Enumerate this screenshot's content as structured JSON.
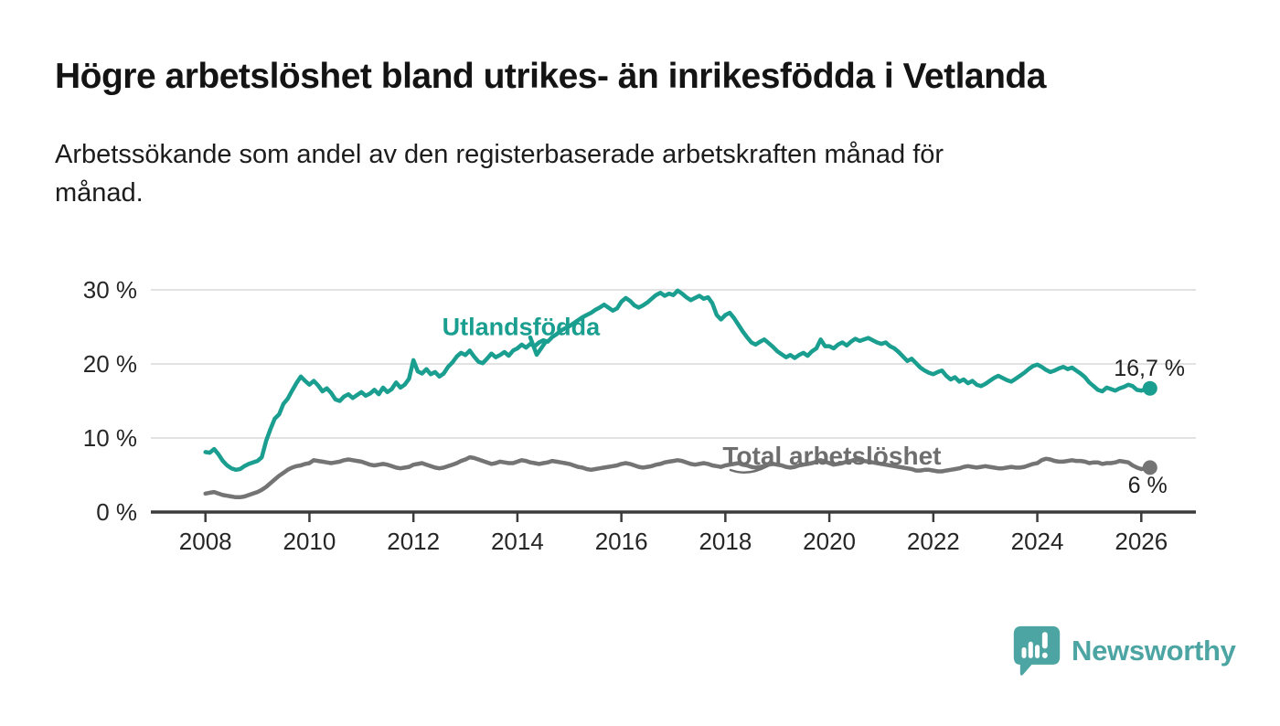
{
  "header": {
    "title": "Högre arbetslöshet bland utrikes- än inrikesfödda i Vetlanda",
    "subtitle_line1": "Arbetssökande som andel av den registerbaserade arbetskraften månad för",
    "subtitle_line2": "månad."
  },
  "footer": {
    "brand_name": "Newsworthy",
    "brand_color": "#4CA5A2",
    "logo_icon": "speech-bubble-bar-chart-icon"
  },
  "colors": {
    "series_foreign_born": "#1A9E8F",
    "series_total": "#747474",
    "axis": "#3B3B3B",
    "gridline": "#D9D9D9",
    "axis_text": "#262626",
    "value_label_text": "#1F1F1F",
    "total_label": "#6E6E6E"
  },
  "chart_data": {
    "type": "line",
    "title": "Högre arbetslöshet bland utrikes- än inrikesfödda i Vetlanda",
    "xlabel": "",
    "ylabel": "",
    "grid": true,
    "x_axis": {
      "range": [
        2006.95,
        2027.05
      ],
      "ticks": [
        2008,
        2010,
        2012,
        2014,
        2016,
        2018,
        2020,
        2022,
        2024,
        2026
      ],
      "tick_labels": [
        "2008",
        "2010",
        "2012",
        "2014",
        "2016",
        "2018",
        "2020",
        "2022",
        "2024",
        "2026"
      ]
    },
    "y_axis": {
      "range": [
        0,
        30
      ],
      "ticks": [
        0,
        10,
        20,
        30
      ],
      "tick_labels": [
        "0 %",
        "10 %",
        "20 %",
        "30 %"
      ]
    },
    "series": [
      {
        "name": "Utlandsfödda",
        "color": "#1A9E8F",
        "unit": "percent",
        "start_year": 2008.0,
        "step_years": 0.0833,
        "end_value": 16.7,
        "values": [
          8.1,
          8.0,
          8.5,
          7.8,
          6.9,
          6.3,
          5.9,
          5.7,
          5.8,
          6.2,
          6.5,
          6.7,
          6.9,
          7.4,
          9.6,
          11.2,
          12.6,
          13.2,
          14.6,
          15.3,
          16.4,
          17.4,
          18.3,
          17.7,
          17.2,
          17.7,
          17.1,
          16.3,
          16.7,
          16.1,
          15.2,
          15.0,
          15.6,
          15.9,
          15.4,
          15.8,
          16.2,
          15.7,
          16.0,
          16.5,
          15.9,
          16.8,
          16.2,
          16.6,
          17.5,
          16.8,
          17.2,
          18.0,
          20.5,
          19.0,
          18.7,
          19.3,
          18.6,
          18.9,
          18.3,
          18.7,
          19.6,
          20.2,
          21.0,
          21.5,
          21.2,
          21.8,
          21.0,
          20.3,
          20.1,
          20.7,
          21.4,
          20.9,
          21.2,
          21.6,
          21.1,
          21.8,
          22.1,
          22.6,
          22.2,
          22.7,
          22.4,
          22.9,
          23.2,
          23.0,
          23.6,
          24.0,
          24.5,
          24.8,
          25.1,
          25.5,
          25.9,
          26.3,
          26.6,
          26.9,
          27.3,
          27.6,
          28.0,
          27.6,
          27.2,
          27.5,
          28.4,
          28.9,
          28.5,
          27.9,
          27.6,
          27.9,
          28.3,
          28.8,
          29.3,
          29.6,
          29.2,
          29.5,
          29.3,
          29.9,
          29.5,
          29.0,
          28.6,
          28.9,
          29.2,
          28.8,
          29.0,
          28.2,
          26.6,
          26.0,
          26.6,
          26.9,
          26.2,
          25.3,
          24.4,
          23.6,
          22.9,
          22.6,
          23.0,
          23.3,
          22.8,
          22.3,
          21.7,
          21.3,
          20.9,
          21.2,
          20.8,
          21.2,
          21.5,
          21.1,
          21.7,
          22.1,
          23.3,
          22.4,
          22.4,
          22.1,
          22.6,
          22.9,
          22.5,
          23.0,
          23.4,
          23.1,
          23.3,
          23.5,
          23.2,
          22.9,
          22.7,
          22.9,
          22.4,
          22.1,
          21.6,
          21.0,
          20.4,
          20.7,
          20.1,
          19.5,
          19.1,
          18.8,
          18.6,
          18.9,
          19.1,
          18.4,
          17.9,
          18.2,
          17.6,
          17.9,
          17.4,
          17.7,
          17.2,
          17.0,
          17.3,
          17.7,
          18.1,
          18.4,
          18.1,
          17.8,
          17.6,
          18.0,
          18.4,
          18.8,
          19.3,
          19.7,
          19.9,
          19.6,
          19.2,
          18.9,
          19.1,
          19.4,
          19.6,
          19.3,
          19.5,
          19.1,
          18.7,
          18.2,
          17.5,
          17.0,
          16.5,
          16.3,
          16.8,
          16.6,
          16.4,
          16.7,
          16.9,
          17.2,
          17.0,
          16.5,
          16.4,
          16.6,
          16.7
        ]
      },
      {
        "name": "Total arbetslöshet",
        "color": "#747474",
        "unit": "percent",
        "start_year": 2008.0,
        "step_years": 0.0833,
        "end_value": 6.0,
        "values": [
          2.5,
          2.6,
          2.7,
          2.5,
          2.3,
          2.2,
          2.1,
          2.0,
          2.0,
          2.1,
          2.3,
          2.5,
          2.7,
          3.0,
          3.4,
          3.9,
          4.4,
          4.9,
          5.3,
          5.7,
          6.0,
          6.2,
          6.3,
          6.5,
          6.6,
          7.0,
          6.9,
          6.8,
          6.7,
          6.6,
          6.7,
          6.8,
          7.0,
          7.1,
          7.0,
          6.9,
          6.8,
          6.6,
          6.4,
          6.3,
          6.4,
          6.5,
          6.4,
          6.2,
          6.0,
          5.9,
          6.0,
          6.1,
          6.4,
          6.5,
          6.6,
          6.4,
          6.2,
          6.0,
          5.9,
          6.0,
          6.2,
          6.4,
          6.6,
          6.9,
          7.1,
          7.4,
          7.3,
          7.1,
          6.9,
          6.7,
          6.5,
          6.6,
          6.8,
          6.7,
          6.6,
          6.6,
          6.8,
          7.0,
          6.9,
          6.7,
          6.6,
          6.5,
          6.6,
          6.7,
          6.9,
          6.8,
          6.7,
          6.6,
          6.5,
          6.3,
          6.1,
          6.0,
          5.8,
          5.7,
          5.8,
          5.9,
          6.0,
          6.1,
          6.2,
          6.3,
          6.5,
          6.6,
          6.5,
          6.3,
          6.1,
          6.0,
          6.1,
          6.2,
          6.4,
          6.5,
          6.7,
          6.8,
          6.9,
          7.0,
          6.9,
          6.7,
          6.5,
          6.4,
          6.5,
          6.6,
          6.5,
          6.3,
          6.2,
          6.1,
          6.3,
          6.4,
          6.5,
          6.6,
          6.4,
          6.3,
          6.1,
          6.0,
          6.1,
          6.2,
          6.4,
          6.5,
          6.4,
          6.3,
          6.1,
          6.0,
          6.1,
          6.3,
          6.4,
          6.5,
          6.6,
          6.8,
          7.0,
          6.8,
          6.6,
          6.4,
          6.5,
          6.6,
          6.8,
          6.9,
          7.1,
          7.0,
          6.9,
          6.8,
          6.7,
          6.6,
          6.5,
          6.4,
          6.3,
          6.2,
          6.1,
          6.0,
          5.9,
          5.8,
          5.6,
          5.6,
          5.7,
          5.7,
          5.6,
          5.5,
          5.5,
          5.6,
          5.7,
          5.8,
          5.9,
          6.1,
          6.2,
          6.1,
          6.0,
          6.1,
          6.2,
          6.1,
          6.0,
          5.9,
          5.9,
          6.0,
          6.1,
          6.0,
          6.0,
          6.1,
          6.3,
          6.5,
          6.6,
          7.0,
          7.2,
          7.1,
          6.9,
          6.8,
          6.8,
          6.9,
          7.0,
          6.9,
          6.9,
          6.8,
          6.6,
          6.7,
          6.7,
          6.5,
          6.6,
          6.6,
          6.7,
          6.9,
          6.8,
          6.7,
          6.3,
          6.0,
          5.8,
          5.9,
          6.0
        ]
      }
    ],
    "annotations": [
      {
        "text": "Utlandsfödda",
        "x": 2014.07,
        "y": 23.9,
        "color": "#1A9E8F",
        "anchor": "middle",
        "font_size": 27
      },
      {
        "text": "Total arbetslöshet",
        "x": 2020.05,
        "y": 6.4,
        "color": "#6E6E6E",
        "anchor": "middle",
        "font_size": 28
      }
    ],
    "end_labels": [
      {
        "text": "16,7 %",
        "x": 2026.84,
        "y": 18.4,
        "anchor": "end"
      },
      {
        "text": "6 %",
        "x": 2026.5,
        "y": 2.6,
        "anchor": "end"
      }
    ],
    "legend_position": "inline-annotations"
  }
}
